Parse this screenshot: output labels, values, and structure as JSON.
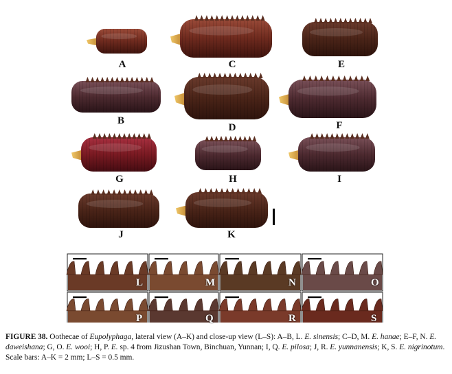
{
  "figure": {
    "specimen_labels": [
      "A",
      "B",
      "C",
      "D",
      "E",
      "F",
      "G",
      "H",
      "I",
      "J",
      "K"
    ],
    "closeup_labels": [
      "L",
      "M",
      "N",
      "O",
      "P",
      "Q",
      "R",
      "S"
    ],
    "caption": {
      "number": "FIGURE 38.",
      "text_1": " Oothecae of ",
      "genus": "Eupolyphaga",
      "text_2": ", lateral view (A–K) and close-up view (L–S): A–B, L. ",
      "sp_1": "E. sinensis",
      "text_3": "; C–D, M. ",
      "sp_2": "E. hanae",
      "text_4": "; E–F, N. ",
      "sp_3": "E. daweishana",
      "text_5": "; G, O. ",
      "sp_4": "E. wooi",
      "text_6": "; H, P. ",
      "sp_5": "E.",
      "text_7": " sp. 4 from Jizushan Town, Binchuan, Yunnan; I, Q. ",
      "sp_6": "E. pilosa",
      "text_8": "; J, R. ",
      "sp_7": "E. yunnanensis",
      "text_9": "; K, S. ",
      "sp_8": "E. nigrinotum",
      "text_10": ". Scale bars: A–K = 2 mm; L–S = 0.5 mm."
    }
  },
  "colors": {
    "dark_brown": "#4a2418",
    "red_brown": "#6e2a1e",
    "crimson": "#7a1a22",
    "purple_brown": "#4d2a30",
    "amber_tip": "#d9a23a"
  }
}
